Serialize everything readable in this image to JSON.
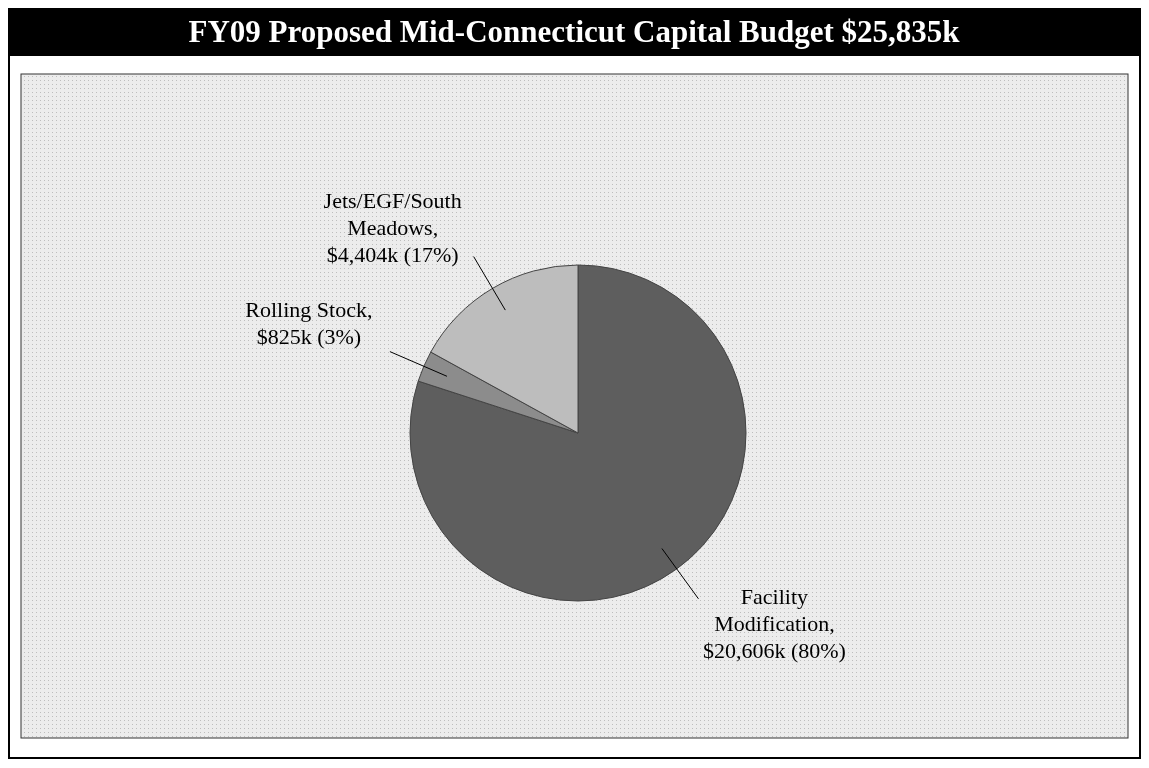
{
  "chart_data": {
    "type": "pie",
    "title": "FY09 Proposed Mid-Connecticut Capital Budget $25,835k",
    "categories": [
      "Facility Modification, $20,606k (80%)",
      "Rolling Stock, $825k (3%)",
      "Jets/EGF/South Meadows, $4,404k (17%)"
    ],
    "values": [
      80,
      3,
      17
    ],
    "colors": [
      "#5e5e5e",
      "#8c8c8c",
      "#bdbdbd"
    ]
  }
}
